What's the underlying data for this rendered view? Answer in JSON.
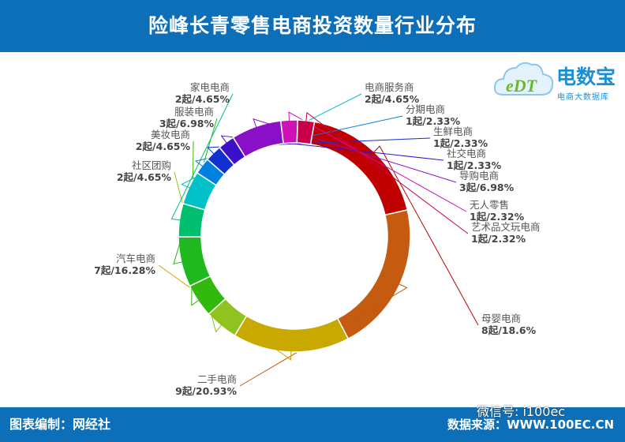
{
  "header": {
    "title": "险峰长青零售电商投资数量行业分布"
  },
  "footer": {
    "left": "图表编制：网经社",
    "source_label": "数据来源：",
    "site": "WWW.100EC.CN",
    "wechat": "微信号: i100ec"
  },
  "logo": {
    "name": "电数宝",
    "tagline": "电商大数据库",
    "mark": "eDT",
    "color": "#1a8fd6"
  },
  "colors": {
    "bar": "#0d6fb8"
  },
  "chart_data": {
    "type": "pie",
    "style": "donut",
    "title": "险峰长青零售电商投资数量行业分布",
    "unit": "起",
    "slices": [
      {
        "name": "母婴电商",
        "value": 8,
        "percent": "18.6%",
        "label": "8起/18.6%",
        "color": "#c00000"
      },
      {
        "name": "二手电商",
        "value": 9,
        "percent": "20.93%",
        "label": "9起/20.93%",
        "color": "#c55a11"
      },
      {
        "name": "汽车电商",
        "value": 7,
        "percent": "16.28%",
        "label": "7起/16.28%",
        "color": "#c9a800"
      },
      {
        "name": "社区团购",
        "value": 2,
        "percent": "4.65%",
        "label": "2起/4.65%",
        "color": "#8fc31f"
      },
      {
        "name": "美妆电商",
        "value": 2,
        "percent": "4.65%",
        "label": "2起/4.65%",
        "color": "#33b80c"
      },
      {
        "name": "服装电商",
        "value": 3,
        "percent": "6.98%",
        "label": "3起/6.98%",
        "color": "#1fb81f"
      },
      {
        "name": "家电电商",
        "value": 2,
        "percent": "4.65%",
        "label": "2起/4.65%",
        "color": "#00c070"
      },
      {
        "name": "电商服务商",
        "value": 2,
        "percent": "4.65%",
        "label": "2起/4.65%",
        "color": "#00c0c8"
      },
      {
        "name": "分期电商",
        "value": 1,
        "percent": "2.33%",
        "label": "1起/2.33%",
        "color": "#0080e0"
      },
      {
        "name": "生鲜电商",
        "value": 1,
        "percent": "2.33%",
        "label": "1起/2.33%",
        "color": "#1030d0"
      },
      {
        "name": "社交电商",
        "value": 1,
        "percent": "2.33%",
        "label": "1起/2.33%",
        "color": "#3a10c8"
      },
      {
        "name": "导购电商",
        "value": 3,
        "percent": "6.98%",
        "label": "3起/6.98%",
        "color": "#8a10c8"
      },
      {
        "name": "无人零售",
        "value": 1,
        "percent": "2.32%",
        "label": "1起/2.32%",
        "color": "#d010b8"
      },
      {
        "name": "艺术品文玩电商",
        "value": 1,
        "percent": "2.32%",
        "label": "1起/2.32%",
        "color": "#c8004a"
      }
    ]
  }
}
